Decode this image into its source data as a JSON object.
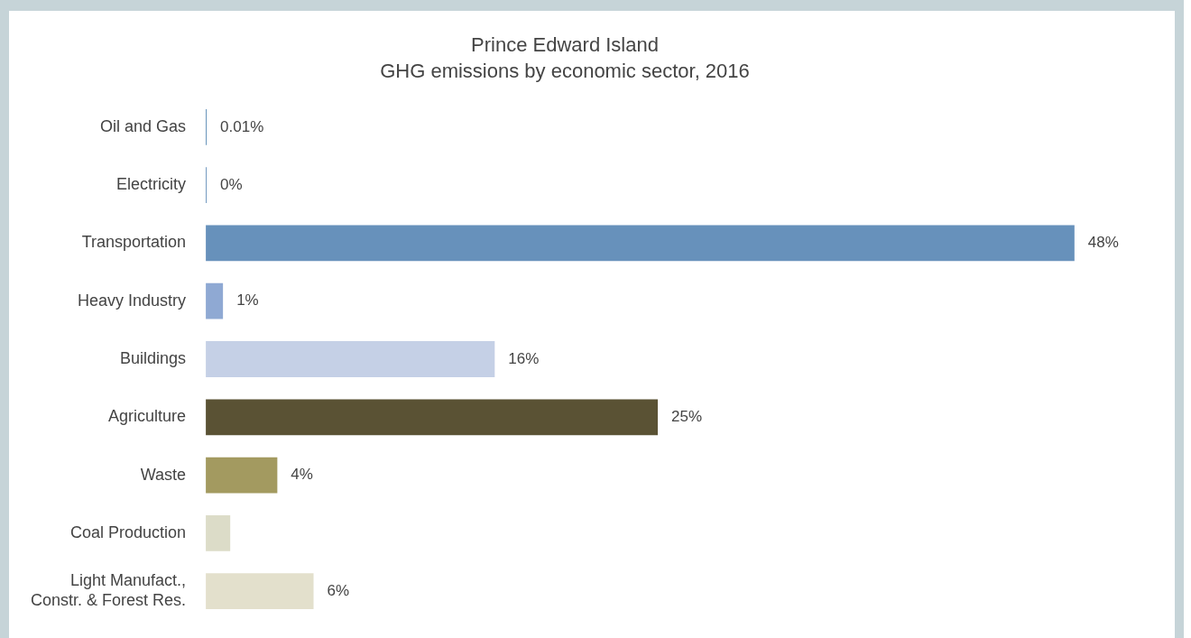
{
  "chart_data": {
    "type": "bar",
    "orientation": "horizontal",
    "title": "Prince Edward Island",
    "subtitle": "GHG emissions by economic sector, 2016",
    "categories": [
      "Oil and Gas",
      "Electricity",
      "Transportation",
      "Heavy Industry",
      "Buildings",
      "Agriculture",
      "Waste",
      "Coal Production",
      "Light Manufact., Constr. & Forest Res."
    ],
    "values": [
      0.01,
      0,
      48,
      1,
      16,
      25,
      4,
      1.4,
      6
    ],
    "colors": [
      "#5b8bb5",
      "#6791bb",
      "#6791bb",
      "#8fa9d3",
      "#c5d0e6",
      "#5a5234",
      "#a39a60",
      "#dcdcc8",
      "#e3e0cc"
    ],
    "value_labels": [
      "0.01%",
      "0%",
      "48%",
      "1%",
      "16%",
      "25%",
      "4%",
      null,
      "6%"
    ],
    "grid": false,
    "legend": false
  }
}
